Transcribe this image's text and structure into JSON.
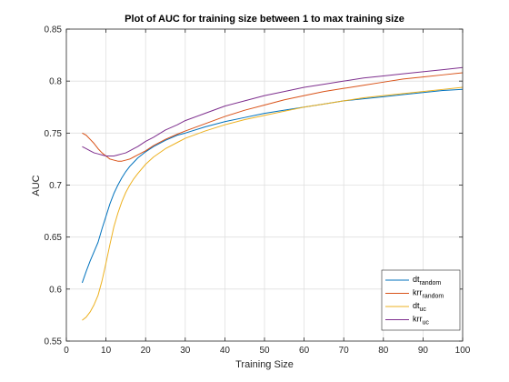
{
  "chart_data": {
    "type": "line",
    "title": "Plot of AUC for training size between 1 to max training size",
    "xlabel": "Training Size",
    "ylabel": "AUC",
    "xlim": [
      0,
      100
    ],
    "ylim": [
      0.55,
      0.85
    ],
    "xticks": [
      "0",
      "10",
      "20",
      "30",
      "40",
      "50",
      "60",
      "70",
      "80",
      "90",
      "100"
    ],
    "yticks": [
      "0.55",
      "0.6",
      "0.65",
      "0.7",
      "0.75",
      "0.8",
      "0.85"
    ],
    "grid": true,
    "legend_position": "bottom-right",
    "series": [
      {
        "name": "dt",
        "subscript": "random",
        "color": "#0072BD",
        "x": [
          4,
          5,
          6,
          7,
          8,
          9,
          10,
          11,
          12,
          13,
          14,
          15,
          16,
          17,
          18,
          20,
          22,
          25,
          28,
          30,
          35,
          40,
          45,
          50,
          55,
          60,
          65,
          70,
          75,
          80,
          85,
          90,
          95,
          100
        ],
        "y": [
          0.606,
          0.617,
          0.627,
          0.636,
          0.645,
          0.658,
          0.67,
          0.682,
          0.692,
          0.7,
          0.707,
          0.713,
          0.718,
          0.722,
          0.726,
          0.732,
          0.737,
          0.743,
          0.748,
          0.75,
          0.756,
          0.761,
          0.765,
          0.769,
          0.772,
          0.775,
          0.778,
          0.781,
          0.783,
          0.785,
          0.787,
          0.789,
          0.791,
          0.792
        ]
      },
      {
        "name": "krr",
        "subscript": "random",
        "color": "#D95319",
        "x": [
          4,
          5,
          6,
          7,
          8,
          9,
          10,
          11,
          12,
          13,
          14,
          15,
          16,
          17,
          18,
          20,
          22,
          25,
          28,
          30,
          35,
          40,
          45,
          50,
          55,
          60,
          65,
          70,
          75,
          80,
          85,
          90,
          95,
          100
        ],
        "y": [
          0.75,
          0.748,
          0.744,
          0.74,
          0.735,
          0.731,
          0.728,
          0.725,
          0.724,
          0.723,
          0.723,
          0.724,
          0.725,
          0.727,
          0.729,
          0.733,
          0.738,
          0.744,
          0.749,
          0.752,
          0.759,
          0.766,
          0.772,
          0.777,
          0.782,
          0.786,
          0.79,
          0.793,
          0.796,
          0.799,
          0.802,
          0.804,
          0.806,
          0.808
        ]
      },
      {
        "name": "dt",
        "subscript": "uc",
        "color": "#EDB120",
        "x": [
          4,
          5,
          6,
          7,
          8,
          9,
          10,
          11,
          12,
          13,
          14,
          15,
          16,
          17,
          18,
          20,
          22,
          25,
          28,
          30,
          35,
          40,
          45,
          50,
          55,
          60,
          65,
          70,
          75,
          80,
          85,
          90,
          95,
          100
        ],
        "y": [
          0.57,
          0.573,
          0.578,
          0.585,
          0.594,
          0.608,
          0.625,
          0.643,
          0.66,
          0.673,
          0.684,
          0.693,
          0.7,
          0.706,
          0.711,
          0.72,
          0.727,
          0.735,
          0.741,
          0.745,
          0.752,
          0.758,
          0.763,
          0.767,
          0.771,
          0.775,
          0.778,
          0.781,
          0.784,
          0.786,
          0.788,
          0.79,
          0.792,
          0.794
        ]
      },
      {
        "name": "krr",
        "subscript": "uc",
        "color": "#7E2F8E",
        "x": [
          4,
          5,
          6,
          7,
          8,
          9,
          10,
          11,
          12,
          13,
          14,
          15,
          16,
          17,
          18,
          20,
          22,
          25,
          28,
          30,
          35,
          40,
          45,
          50,
          55,
          60,
          65,
          70,
          75,
          80,
          85,
          90,
          95,
          100
        ],
        "y": [
          0.737,
          0.735,
          0.733,
          0.731,
          0.73,
          0.729,
          0.728,
          0.728,
          0.728,
          0.729,
          0.73,
          0.731,
          0.733,
          0.735,
          0.737,
          0.742,
          0.746,
          0.753,
          0.758,
          0.762,
          0.769,
          0.776,
          0.781,
          0.786,
          0.79,
          0.794,
          0.797,
          0.8,
          0.803,
          0.805,
          0.807,
          0.809,
          0.811,
          0.813
        ]
      }
    ]
  }
}
